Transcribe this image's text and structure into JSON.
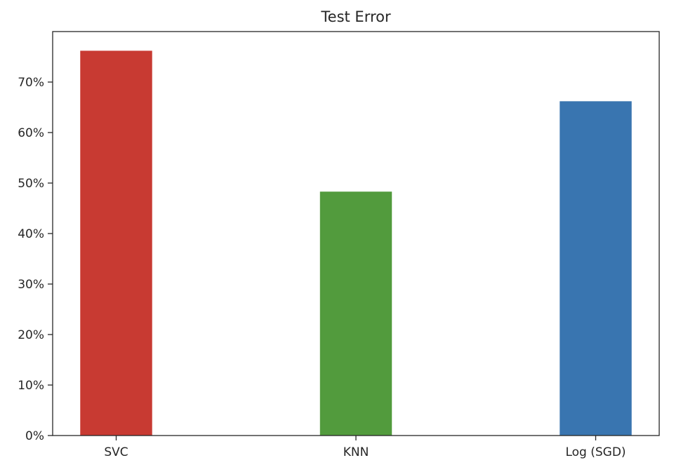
{
  "chart_data": {
    "type": "bar",
    "title": "Test Error",
    "xlabel": "",
    "ylabel": "",
    "categories": [
      "SVC",
      "KNN",
      "Log (SGD)"
    ],
    "values": [
      76.2,
      48.3,
      66.2
    ],
    "value_unit": "%",
    "colors": [
      "#c83a32",
      "#529b3d",
      "#3975b0"
    ],
    "ylim": [
      0,
      80
    ],
    "yticks": [
      0,
      10,
      20,
      30,
      40,
      50,
      60,
      70
    ],
    "ytick_labels": [
      "0%",
      "10%",
      "20%",
      "30%",
      "40%",
      "50%",
      "60%",
      "70%"
    ],
    "grid": false,
    "legend": "none"
  }
}
